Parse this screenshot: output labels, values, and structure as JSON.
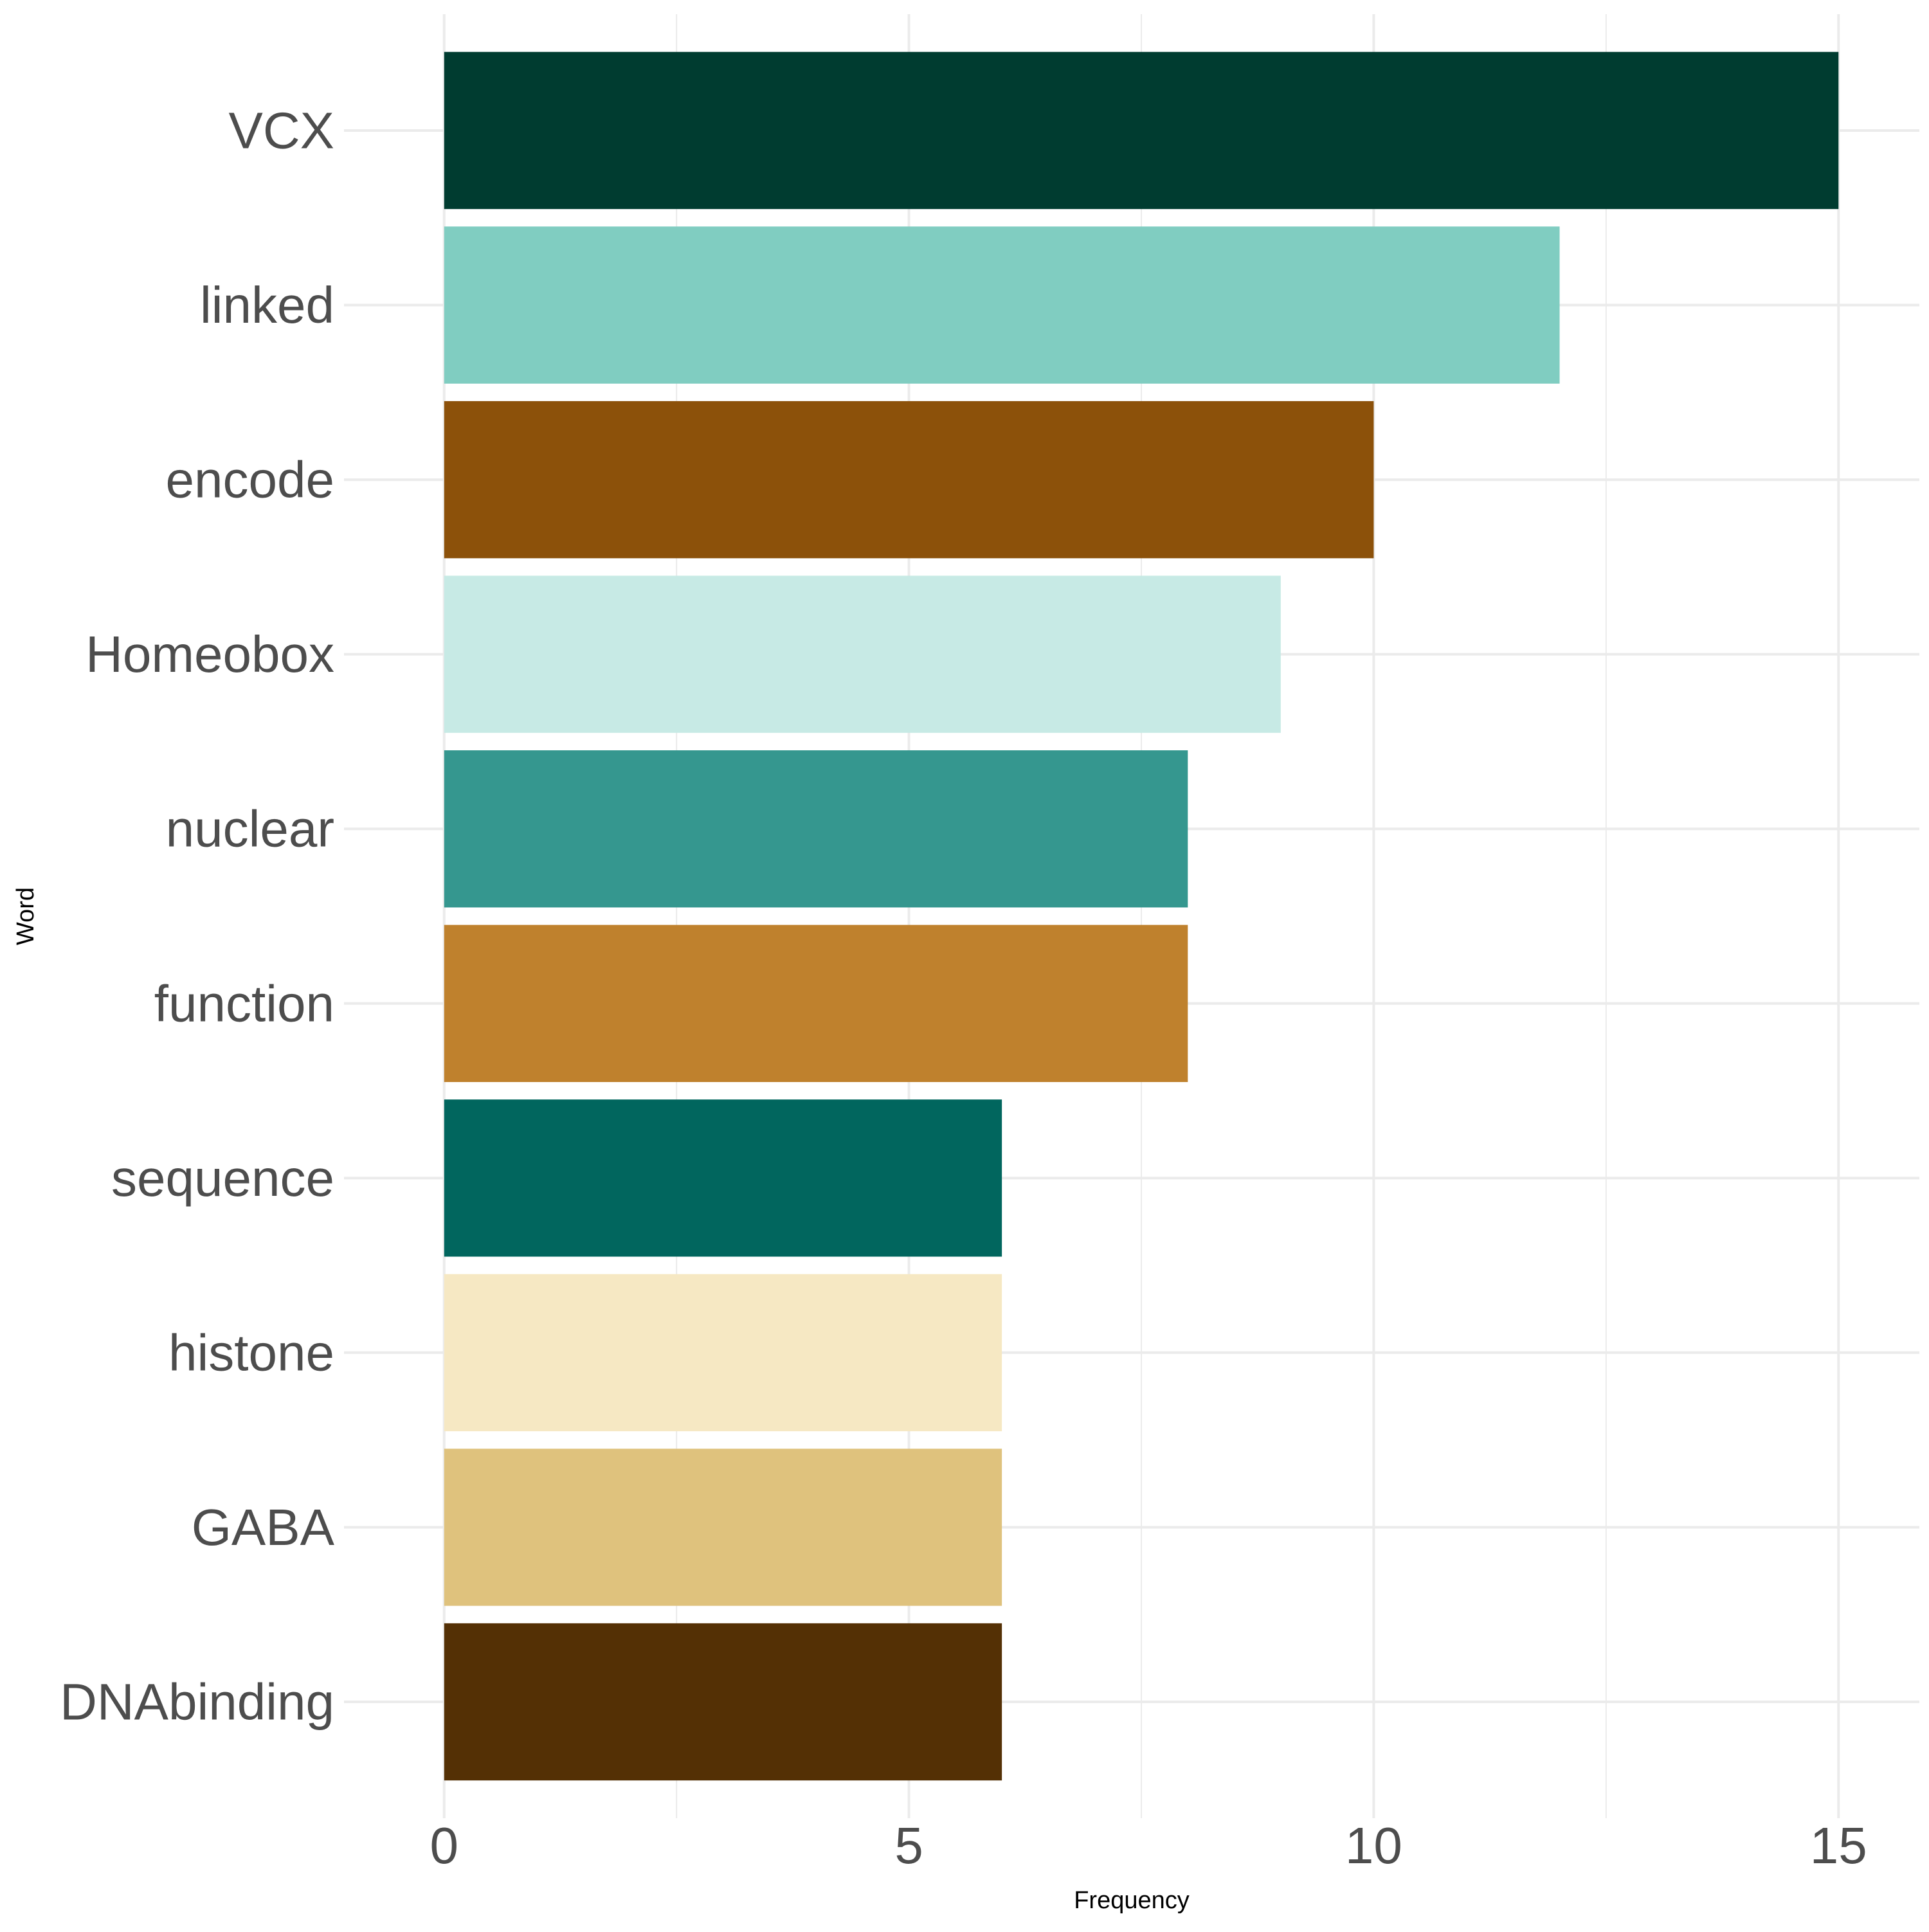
{
  "chart_data": {
    "type": "bar",
    "orientation": "horizontal",
    "title": "",
    "xlabel": "Frequency",
    "ylabel": "Word",
    "xlim": [
      0,
      15
    ],
    "x_ticks": [
      0,
      5,
      10,
      15
    ],
    "grid": true,
    "legend": "none",
    "categories": [
      "VCX",
      "linked",
      "encode",
      "Homeobox",
      "nuclear",
      "function",
      "sequence",
      "histone",
      "GABA",
      "DNAbinding"
    ],
    "values": [
      15,
      12,
      10,
      9,
      8,
      8,
      6,
      6,
      6,
      6
    ],
    "colors": [
      "#003C30",
      "#80CDC1",
      "#8C510A",
      "#C7EAE5",
      "#35978F",
      "#BF812D",
      "#01665E",
      "#F6E8C3",
      "#DFC27D",
      "#543005"
    ]
  }
}
